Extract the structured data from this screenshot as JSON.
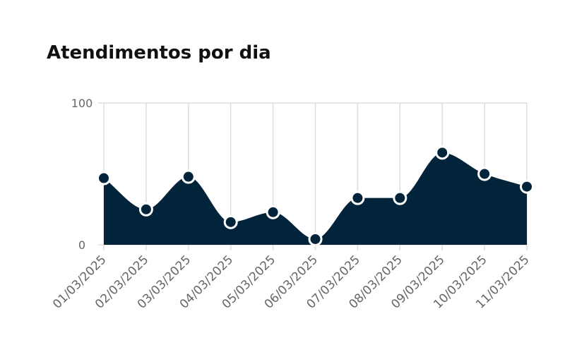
{
  "chart_data": {
    "type": "area",
    "title": "Atendimentos por dia",
    "categories": [
      "01/03/2025",
      "02/03/2025",
      "03/03/2025",
      "04/03/2025",
      "05/03/2025",
      "06/03/2025",
      "07/03/2025",
      "08/03/2025",
      "09/03/2025",
      "10/03/2025",
      "11/03/2025"
    ],
    "values": [
      47,
      25,
      48,
      16,
      23,
      4,
      33,
      33,
      65,
      50,
      41
    ],
    "color": "#02243a",
    "ylim": [
      0,
      100
    ],
    "yticks": [
      0,
      100
    ],
    "grid": true
  }
}
